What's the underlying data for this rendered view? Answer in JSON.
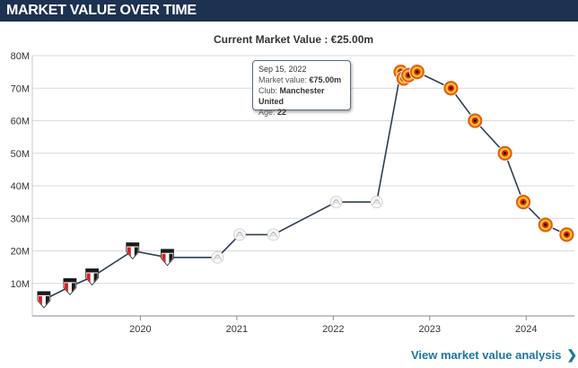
{
  "header": {
    "title": "MARKET VALUE OVER TIME"
  },
  "current_value_text": "Current Market Value : €25.00m",
  "tooltip": {
    "date": "Sep 15, 2022",
    "market_value_label": "Market value:",
    "market_value": "€75.00m",
    "club_label": "Club:",
    "club": "Manchester United",
    "age_label": "Age:",
    "age": "22"
  },
  "footer": {
    "link_label": "View market value analysis",
    "chevron_icon": "chevron-right-icon"
  },
  "colors": {
    "header_bg": "#1d3150",
    "line": "#2d3d54",
    "grid": "#d9d9d9",
    "link": "#1d75a3"
  },
  "chart_data": {
    "type": "line",
    "title": "",
    "xlabel": "",
    "ylabel": "",
    "ylim": [
      0,
      80
    ],
    "xlim": [
      2018.88,
      2024.5
    ],
    "grid": true,
    "y_ticks": [
      10,
      20,
      30,
      40,
      50,
      60,
      70,
      80
    ],
    "y_tick_labels": [
      "10M",
      "20M",
      "30M",
      "40M",
      "50M",
      "60M",
      "70M",
      "80M"
    ],
    "x_ticks": [
      2020,
      2021,
      2022,
      2023,
      2024
    ],
    "x_tick_labels": [
      "2020",
      "2021",
      "2022",
      "2023",
      "2024"
    ],
    "series": [
      {
        "values": [
          {
            "x": 2019.0,
            "y": 5,
            "club": "sao-paulo-crest"
          },
          {
            "x": 2019.27,
            "y": 9,
            "club": "sao-paulo-crest"
          },
          {
            "x": 2019.5,
            "y": 12,
            "club": "sao-paulo-crest"
          },
          {
            "x": 2019.92,
            "y": 20,
            "club": "sao-paulo-crest"
          },
          {
            "x": 2020.28,
            "y": 18,
            "club": "sao-paulo-crest"
          },
          {
            "x": 2020.8,
            "y": 18,
            "club": "ajax-crest"
          },
          {
            "x": 2021.03,
            "y": 25,
            "club": "ajax-crest"
          },
          {
            "x": 2021.38,
            "y": 25,
            "club": "ajax-crest"
          },
          {
            "x": 2022.03,
            "y": 35,
            "club": "ajax-crest"
          },
          {
            "x": 2022.45,
            "y": 35,
            "club": "ajax-crest"
          },
          {
            "x": 2022.7,
            "y": 75,
            "club": "manchester-united-crest"
          },
          {
            "x": 2022.73,
            "y": 73,
            "club": "manchester-united-crest"
          },
          {
            "x": 2022.78,
            "y": 74,
            "club": "manchester-united-crest"
          },
          {
            "x": 2022.87,
            "y": 75,
            "club": "manchester-united-crest"
          },
          {
            "x": 2023.22,
            "y": 70,
            "club": "manchester-united-crest"
          },
          {
            "x": 2023.47,
            "y": 60,
            "club": "manchester-united-crest"
          },
          {
            "x": 2023.78,
            "y": 50,
            "club": "manchester-united-crest"
          },
          {
            "x": 2023.97,
            "y": 35,
            "club": "manchester-united-crest"
          },
          {
            "x": 2024.2,
            "y": 28,
            "club": "manchester-united-crest"
          },
          {
            "x": 2024.42,
            "y": 25,
            "club": "manchester-united-crest"
          }
        ]
      }
    ]
  }
}
